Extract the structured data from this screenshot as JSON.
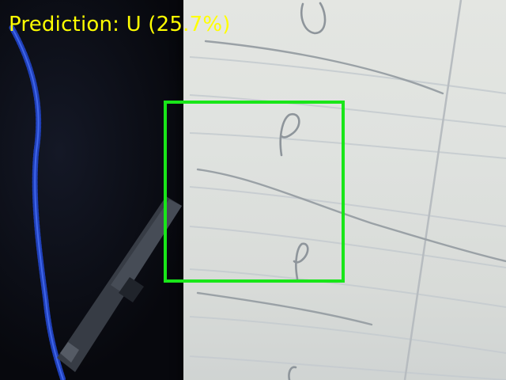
{
  "overlay": {
    "prediction_text": "Prediction: U (25.7%)",
    "predicted_letter": "U",
    "confidence_percent": 25.7,
    "text_color": "#ffff00",
    "roi_color": "#19e619"
  },
  "scene": {
    "icons": [
      "camera-feed",
      "notebook-paper",
      "pen",
      "usb-cable"
    ]
  }
}
